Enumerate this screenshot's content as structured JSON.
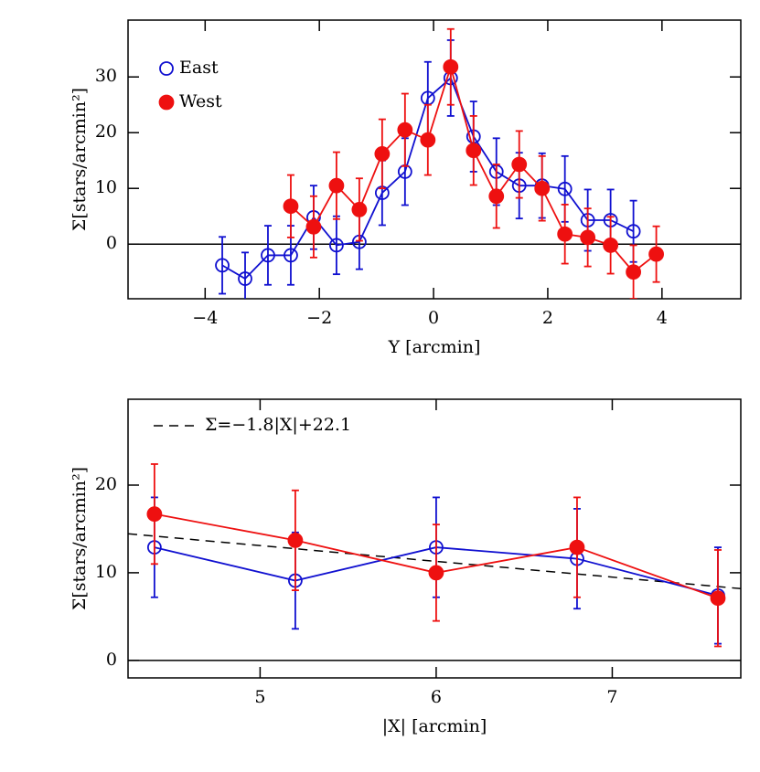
{
  "chart_data": [
    {
      "type": "line",
      "xlabel": "Y [arcmin]",
      "ylabel": "Σ[stars/arcmin²]",
      "xlim": [
        -5.35,
        5.38
      ],
      "ylim": [
        -9.8,
        40.2
      ],
      "xticks": [
        {
          "value": -4,
          "label": "−4"
        },
        {
          "value": -2,
          "label": "−2"
        },
        0,
        2,
        4
      ],
      "yticks": [
        0,
        10,
        20,
        30
      ],
      "zero_line": true,
      "legend": "upper left",
      "series": [
        {
          "name": "East",
          "color": "#1010d0",
          "marker": "open",
          "x": [
            -3.7,
            -3.3,
            -2.9,
            -2.5,
            -2.1,
            -1.7,
            -1.3,
            -0.9,
            -0.5,
            -0.1,
            0.3,
            0.7,
            1.1,
            1.5,
            1.9,
            2.3,
            2.7,
            3.1,
            3.5
          ],
          "values": [
            -3.8,
            -6.2,
            -2,
            -2,
            4.8,
            -0.2,
            0.4,
            9.2,
            13,
            26.2,
            29.8,
            19.3,
            13,
            10.5,
            10.5,
            9.9,
            4.3,
            4.3,
            2.3
          ],
          "errors": [
            5.1,
            4.7,
            5.3,
            5.3,
            5.7,
            5.2,
            4.9,
            5.8,
            6,
            6.5,
            6.8,
            6.3,
            6,
            5.9,
            5.8,
            5.9,
            5.5,
            5.5,
            5.5
          ]
        },
        {
          "name": "West",
          "color": "#ee1010",
          "marker": "filled",
          "x": [
            -2.5,
            -2.1,
            -1.7,
            -1.3,
            -0.9,
            -0.5,
            -0.1,
            0.3,
            0.7,
            1.1,
            1.5,
            1.9,
            2.3,
            2.7,
            3.1,
            3.5,
            3.9
          ],
          "values": [
            6.8,
            3.1,
            10.5,
            6.2,
            16.2,
            20.5,
            18.7,
            31.8,
            16.8,
            8.6,
            14.3,
            10,
            1.8,
            1.2,
            -0.2,
            -5,
            -1.8
          ],
          "errors": [
            5.6,
            5.5,
            6,
            5.6,
            6.2,
            6.5,
            6.3,
            6.8,
            6.2,
            5.7,
            6,
            5.8,
            5.3,
            5.2,
            5.1,
            4.8,
            5
          ]
        }
      ]
    },
    {
      "type": "line",
      "xlabel": "|X| [arcmin]",
      "ylabel": "Σ[stars/arcmin²]",
      "xlim": [
        4.25,
        7.73
      ],
      "ylim": [
        -2,
        29.8
      ],
      "xticks": [
        5,
        6,
        7
      ],
      "yticks": [
        0,
        10,
        20
      ],
      "zero_line": true,
      "fit": {
        "label": "Σ=−1.8|X|+22.1",
        "slope": -1.8,
        "intercept": 22.1
      },
      "x": [
        4.4,
        5.2,
        6,
        6.8,
        7.6
      ],
      "series": [
        {
          "color": "#1010d0",
          "marker": "open",
          "values": [
            12.9,
            9.1,
            12.9,
            11.6,
            7.4
          ],
          "errors": [
            5.7,
            5.5,
            5.7,
            5.7,
            5.5
          ]
        },
        {
          "color": "#ee1010",
          "marker": "filled",
          "values": [
            16.7,
            13.7,
            10,
            12.9,
            7.1
          ],
          "errors": [
            5.7,
            5.7,
            5.5,
            5.7,
            5.5
          ]
        }
      ]
    }
  ]
}
